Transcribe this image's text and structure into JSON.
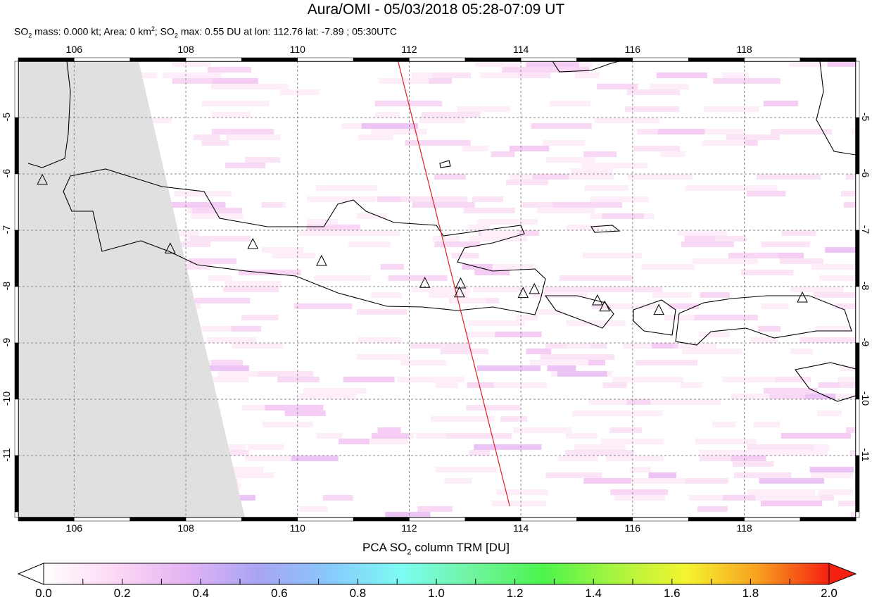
{
  "header": {
    "title": "Aura/OMI - 05/03/2018 05:28-07:09 UT",
    "subtitle_parts": [
      "SO",
      "2",
      " mass: 0.000 kt; Area: 0 km",
      "2",
      "; SO",
      "2",
      " max: 0.55 DU at lon: 112.76 lat: -7.89 ; 05:30UTC"
    ]
  },
  "map": {
    "lon_ticks": [
      "106",
      "108",
      "110",
      "112",
      "114",
      "116",
      "118"
    ],
    "lat_ticks": [
      "-5",
      "-6",
      "-7",
      "-8",
      "-9",
      "-10",
      "-11"
    ],
    "lon_range": [
      105,
      120
    ],
    "lat_range": [
      -12.1,
      -4
    ],
    "swath_line": {
      "color": "#e02020",
      "from": [
        111.8,
        -4
      ],
      "to": [
        113.8,
        -11.9
      ]
    },
    "volcanoes": [
      [
        105.43,
        -6.11
      ],
      [
        107.72,
        -7.33
      ],
      [
        109.2,
        -7.25
      ],
      [
        110.43,
        -7.55
      ],
      [
        112.28,
        -7.94
      ],
      [
        112.92,
        -7.95
      ],
      [
        112.9,
        -8.11
      ],
      [
        114.04,
        -8.12
      ],
      [
        114.24,
        -8.05
      ],
      [
        115.37,
        -8.25
      ],
      [
        115.5,
        -8.36
      ],
      [
        116.47,
        -8.42
      ],
      [
        119.04,
        -8.2
      ]
    ]
  },
  "colorbar": {
    "title_parts": [
      "PCA SO",
      "2",
      " column TRM [DU]"
    ],
    "labels": [
      "0.0",
      "0.2",
      "0.4",
      "0.6",
      "0.8",
      "1.0",
      "1.2",
      "1.4",
      "1.6",
      "1.8",
      "2.0"
    ],
    "colors": [
      "#ffffff",
      "#fcd8f4",
      "#e4b4f4",
      "#a8a4f4",
      "#88c8fc",
      "#7cfcf4",
      "#70f4a0",
      "#4cf44c",
      "#a8f440",
      "#f4f430",
      "#f8a020",
      "#f42010"
    ]
  }
}
